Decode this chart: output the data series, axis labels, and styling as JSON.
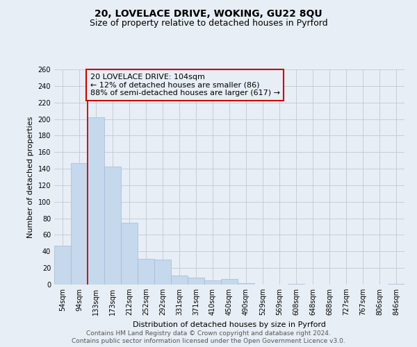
{
  "title": "20, LOVELACE DRIVE, WOKING, GU22 8QU",
  "subtitle": "Size of property relative to detached houses in Pyrford",
  "xlabel": "Distribution of detached houses by size in Pyrford",
  "ylabel": "Number of detached properties",
  "footnote1": "Contains HM Land Registry data © Crown copyright and database right 2024.",
  "footnote2": "Contains public sector information licensed under the Open Government Licence v3.0.",
  "bin_labels": [
    "54sqm",
    "94sqm",
    "133sqm",
    "173sqm",
    "212sqm",
    "252sqm",
    "292sqm",
    "331sqm",
    "371sqm",
    "410sqm",
    "450sqm",
    "490sqm",
    "529sqm",
    "569sqm",
    "608sqm",
    "648sqm",
    "688sqm",
    "727sqm",
    "767sqm",
    "806sqm",
    "846sqm"
  ],
  "bar_heights": [
    47,
    147,
    202,
    143,
    75,
    31,
    30,
    11,
    8,
    5,
    7,
    2,
    0,
    0,
    1,
    0,
    0,
    0,
    0,
    0,
    1
  ],
  "bar_color": "#c5d8ec",
  "bar_edge_color": "#a0bcd8",
  "vline_color": "#cc0000",
  "annotation_box_text": "20 LOVELACE DRIVE: 104sqm\n← 12% of detached houses are smaller (86)\n88% of semi-detached houses are larger (617) →",
  "annotation_box_color": "#cc0000",
  "annotation_text_color": "#000000",
  "ylim": [
    0,
    260
  ],
  "yticks": [
    0,
    20,
    40,
    60,
    80,
    100,
    120,
    140,
    160,
    180,
    200,
    220,
    240,
    260
  ],
  "grid_color": "#c0c8d8",
  "background_color": "#e8eef5",
  "title_fontsize": 10,
  "subtitle_fontsize": 9,
  "axis_label_fontsize": 8,
  "tick_fontsize": 7,
  "annotation_fontsize": 8,
  "footnote_fontsize": 6.5
}
